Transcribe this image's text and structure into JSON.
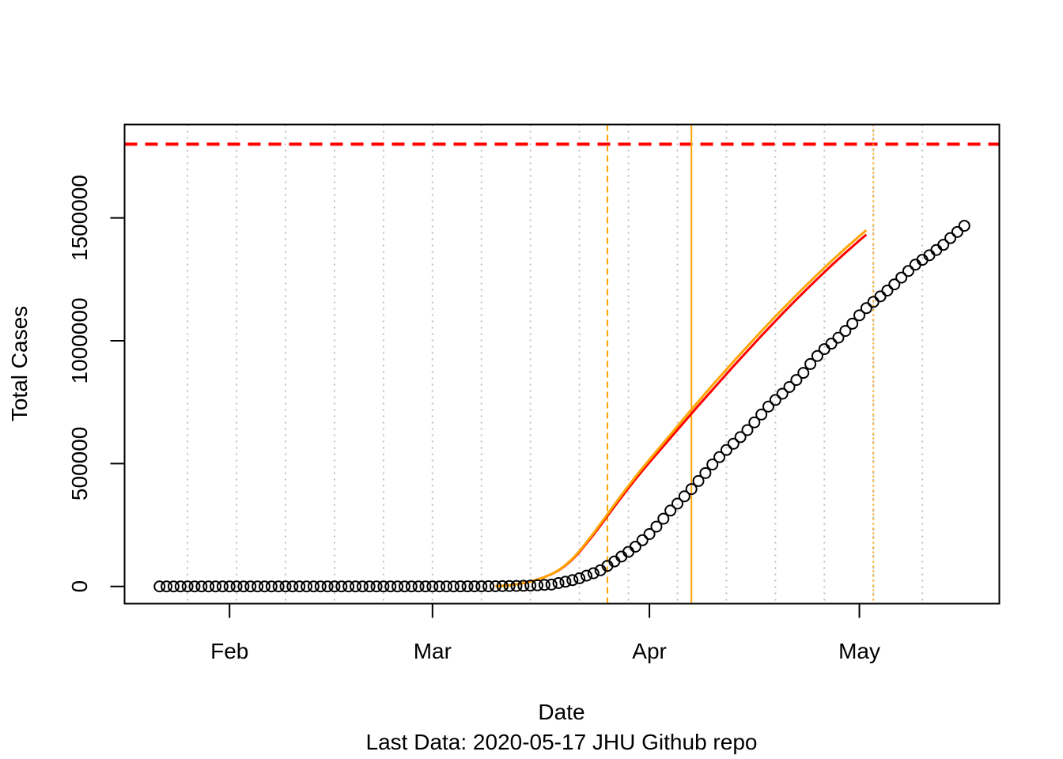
{
  "chart_data": {
    "type": "scatter",
    "title": "",
    "xlabel": "Date",
    "ylabel": "Total Cases",
    "caption": "Last Data: 2020-05-17  JHU Github repo",
    "x_range": [
      "2020-01-17",
      "2020-05-21"
    ],
    "ylim": [
      -70000,
      1880000
    ],
    "x_ticks": [
      {
        "date": "2020-02-01",
        "label": "Feb"
      },
      {
        "date": "2020-03-01",
        "label": "Mar"
      },
      {
        "date": "2020-04-01",
        "label": "Apr"
      },
      {
        "date": "2020-05-01",
        "label": "May"
      }
    ],
    "y_ticks": [
      0,
      500000,
      1000000,
      1500000
    ],
    "y_tick_labels": [
      "0",
      "500000",
      "1000000",
      "1500000"
    ],
    "grid": "vertical dotted weekly",
    "grid_dates": [
      "2020-01-26",
      "2020-02-02",
      "2020-02-09",
      "2020-02-16",
      "2020-02-23",
      "2020-03-01",
      "2020-03-08",
      "2020-03-15",
      "2020-03-22",
      "2020-03-29",
      "2020-04-05",
      "2020-04-12",
      "2020-04-19",
      "2020-04-26",
      "2020-05-03",
      "2020-05-10"
    ],
    "series": [
      {
        "style": "open-circles",
        "color": "#000000",
        "start_date": "2020-01-22",
        "values": [
          1,
          1,
          2,
          2,
          5,
          5,
          5,
          5,
          5,
          7,
          8,
          8,
          11,
          11,
          11,
          11,
          11,
          11,
          11,
          11,
          12,
          12,
          13,
          13,
          13,
          13,
          13,
          13,
          13,
          13,
          15,
          15,
          15,
          51,
          51,
          57,
          58,
          60,
          68,
          74,
          98,
          118,
          149,
          217,
          262,
          402,
          518,
          583,
          959,
          1281,
          1663,
          2179,
          2727,
          3499,
          4632,
          6421,
          7783,
          13747,
          19273,
          25600,
          33276,
          43847,
          53740,
          65778,
          83836,
          101657,
          121478,
          140886,
          161807,
          188172,
          213372,
          243453,
          275586,
          308850,
          337072,
          366667,
          396223,
          429052,
          461437,
          496535,
          526396,
          555313,
          580619,
          607670,
          636350,
          667801,
          699706,
          732197,
          758809,
          784326,
          811865,
          840351,
          869170,
          905358,
          938154,
          965785,
          988197,
          1012582,
          1039909,
          1069424,
          1103461,
          1132539,
          1158040,
          1180375,
          1204351,
          1229331,
          1257023,
          1283929,
          1309550,
          1329260,
          1347881,
          1369376,
          1390406,
          1417774,
          1442824,
          1467820
        ]
      },
      {
        "style": "fit-line",
        "color": "#ff0000",
        "start_date": "2020-03-10",
        "values": [
          1000,
          2500,
          5000,
          9000,
          14000,
          20000,
          28000,
          38000,
          50000,
          65000,
          85000,
          110000,
          140000,
          175000,
          210000,
          248000,
          287000,
          325000,
          363000,
          400000,
          436000,
          471000,
          505000,
          538000,
          571000,
          604000,
          637000,
          670000,
          703000,
          736000,
          768000,
          800000,
          832000,
          864000,
          896000,
          927000,
          958000,
          989000,
          1020000,
          1050000,
          1080000,
          1110000,
          1139000,
          1168000,
          1196000,
          1224000,
          1252000,
          1279000,
          1306000,
          1332000,
          1358000,
          1383000,
          1408000,
          1432000
        ]
      },
      {
        "style": "fit-line",
        "color": "#ffa500",
        "start_date": "2020-03-10",
        "values": [
          1000,
          2500,
          5000,
          9000,
          14000,
          20000,
          28000,
          38000,
          50000,
          66000,
          87000,
          113000,
          144000,
          180000,
          216000,
          255000,
          294000,
          333000,
          372000,
          409000,
          446000,
          482000,
          516000,
          550000,
          584000,
          618000,
          652000,
          686000,
          720000,
          753000,
          786000,
          819000,
          851000,
          883000,
          915000,
          946000,
          977000,
          1008000,
          1039000,
          1069000,
          1099000,
          1128000,
          1157000,
          1186000,
          1214000,
          1242000,
          1270000,
          1297000,
          1324000,
          1350000,
          1376000,
          1401000,
          1426000,
          1450000
        ]
      }
    ],
    "reference_lines": [
      {
        "orientation": "horizontal",
        "value": 1800000,
        "color": "#ff0000",
        "style": "dashed"
      },
      {
        "orientation": "vertical",
        "date": "2020-03-26",
        "color": "#ffa500",
        "style": "dashed"
      },
      {
        "orientation": "vertical",
        "date": "2020-04-07",
        "color": "#ffa500",
        "style": "solid"
      },
      {
        "orientation": "vertical",
        "date": "2020-05-03",
        "color": "#ffa500",
        "style": "dotted"
      }
    ]
  }
}
